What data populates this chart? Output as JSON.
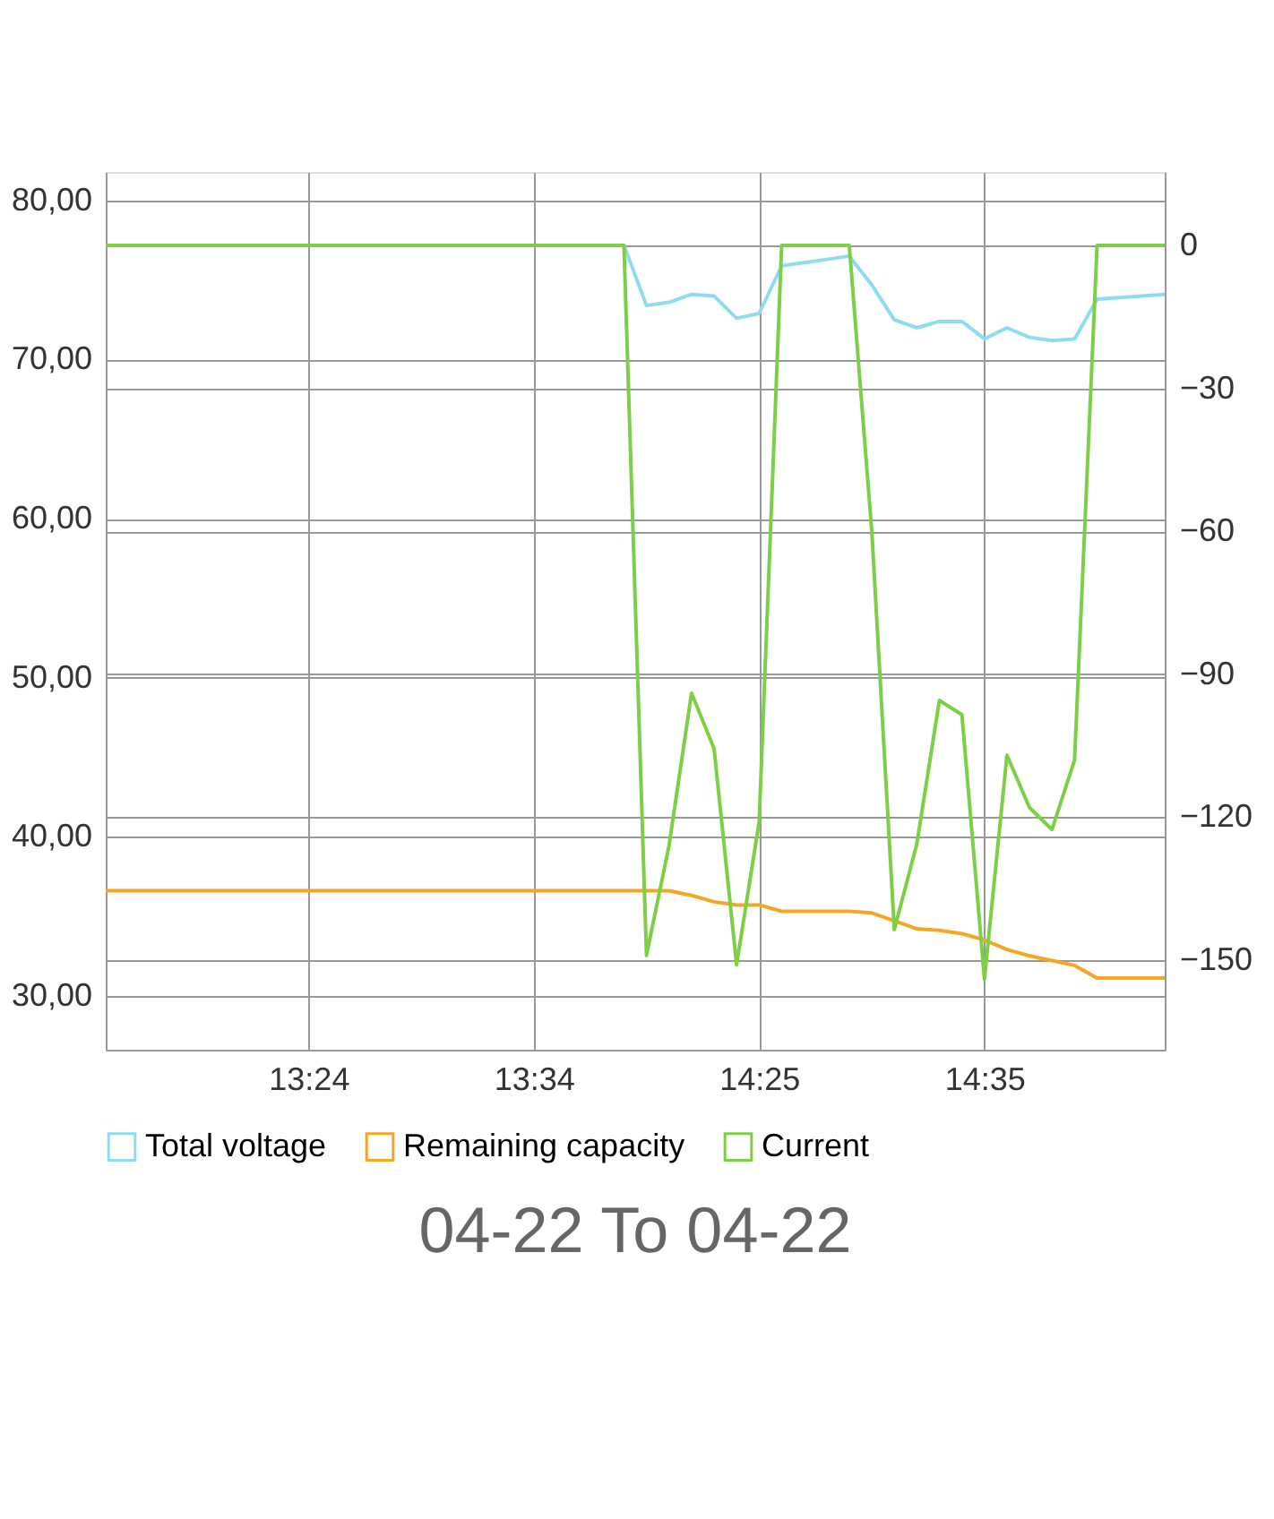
{
  "chart_data": {
    "type": "line",
    "categories": [
      null,
      null,
      null,
      null,
      null,
      null,
      null,
      null,
      null,
      "13:24",
      null,
      null,
      null,
      null,
      null,
      null,
      null,
      null,
      null,
      "13:34",
      null,
      null,
      null,
      null,
      null,
      null,
      null,
      null,
      null,
      "14:25",
      null,
      null,
      null,
      null,
      null,
      null,
      null,
      null,
      null,
      "14:35",
      null,
      null,
      null,
      null,
      null,
      null,
      null,
      null
    ],
    "ylim": [
      26.6,
      81.8
    ],
    "yticks": [
      {
        "value": 30,
        "label": "30,00"
      },
      {
        "value": 40,
        "label": "40,00"
      },
      {
        "value": 50,
        "label": "50,00"
      },
      {
        "value": 60,
        "label": "60,00"
      },
      {
        "value": 70,
        "label": "70,00"
      },
      {
        "value": 80,
        "label": "80,00"
      }
    ],
    "y2lim": [
      -168.8,
      15.4
    ],
    "y2ticks": [
      -150,
      -120,
      -90,
      -60,
      -30,
      0
    ],
    "grid": true,
    "legend": "bottom",
    "annotations": [
      "04-22  To  04-22"
    ],
    "series": [
      {
        "name": "Total voltage",
        "color": "#8fdcf2",
        "values": [
          null,
          null,
          null,
          null,
          null,
          null,
          null,
          null,
          null,
          null,
          null,
          null,
          null,
          null,
          null,
          null,
          null,
          null,
          null,
          null,
          null,
          null,
          null,
          77.2,
          73.4,
          73.6,
          74.1,
          74.0,
          72.6,
          72.9,
          75.9,
          76.1,
          76.3,
          76.5,
          74.7,
          72.5,
          72.0,
          72.4,
          72.4,
          71.3,
          72.0,
          71.4,
          71.2,
          71.3,
          73.8,
          73.9,
          74.0,
          74.1
        ]
      },
      {
        "name": "Remaining capacity",
        "color": "#f5a623",
        "values": [
          36.6,
          36.6,
          36.6,
          36.6,
          36.6,
          36.6,
          36.6,
          36.6,
          36.6,
          36.6,
          36.6,
          36.6,
          36.6,
          36.6,
          36.6,
          36.6,
          36.6,
          36.6,
          36.6,
          36.6,
          36.6,
          36.6,
          36.6,
          36.6,
          36.6,
          36.6,
          36.3,
          35.9,
          35.7,
          35.7,
          35.3,
          35.3,
          35.3,
          35.3,
          35.2,
          34.7,
          34.2,
          34.1,
          33.9,
          33.5,
          32.9,
          32.5,
          32.2,
          31.9,
          31.1,
          31.1,
          31.1,
          31.1
        ]
      },
      {
        "name": "Current",
        "color": "#7dcf46",
        "axis": "y2",
        "values": [
          0,
          0,
          0,
          0,
          0,
          0,
          0,
          0,
          0,
          0,
          0,
          0,
          0,
          0,
          0,
          0,
          0,
          0,
          0,
          0,
          0,
          0,
          0,
          0,
          -149,
          -126,
          -94,
          -105.6,
          -151,
          -121,
          0,
          0,
          0,
          0,
          -60,
          -143.6,
          -125.6,
          -95.5,
          -98.5,
          -154,
          -107,
          -118,
          -122.6,
          -108,
          0,
          0,
          0,
          0
        ]
      }
    ]
  }
}
